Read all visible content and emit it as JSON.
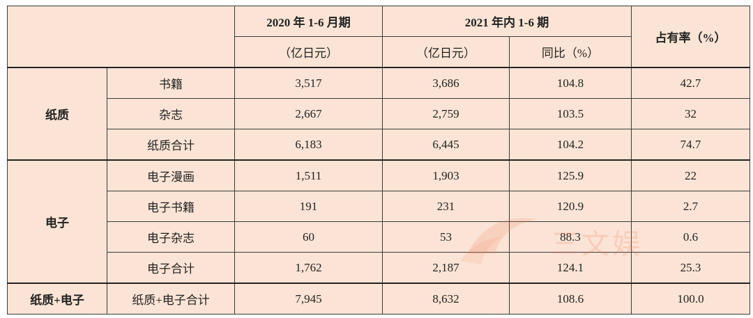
{
  "table": {
    "header": {
      "period_2020": "2020 年 1-6 月期",
      "period_2021": "2021 年内 1-6 期",
      "share": "占有率（%）",
      "unit_2020": "（亿日元）",
      "unit_2021": "（亿日元）",
      "yoy": "同比（%）"
    },
    "groups": [
      {
        "label": "纸质",
        "rows": [
          [
            "书籍",
            "3,517",
            "3,686",
            "104.8",
            "42.7"
          ],
          [
            "杂志",
            "2,667",
            "2,759",
            "103.5",
            "32"
          ],
          [
            "纸质合计",
            "6,183",
            "6,445",
            "104.2",
            "74.7"
          ]
        ]
      },
      {
        "label": "电子",
        "rows": [
          [
            "电子漫画",
            "1,511",
            "1,903",
            "125.9",
            "22"
          ],
          [
            "电子书籍",
            "191",
            "231",
            "120.9",
            "2.7"
          ],
          [
            "电子杂志",
            "60",
            "53",
            "88.3",
            "0.6"
          ],
          [
            "电子合计",
            "1,762",
            "2,187",
            "124.1",
            "25.3"
          ]
        ]
      },
      {
        "label": "纸质+电子",
        "rows": [
          [
            "纸质+电子合计",
            "7,945",
            "8,632",
            "108.6",
            "100.0"
          ]
        ]
      }
    ]
  },
  "watermark": "三文娱"
}
